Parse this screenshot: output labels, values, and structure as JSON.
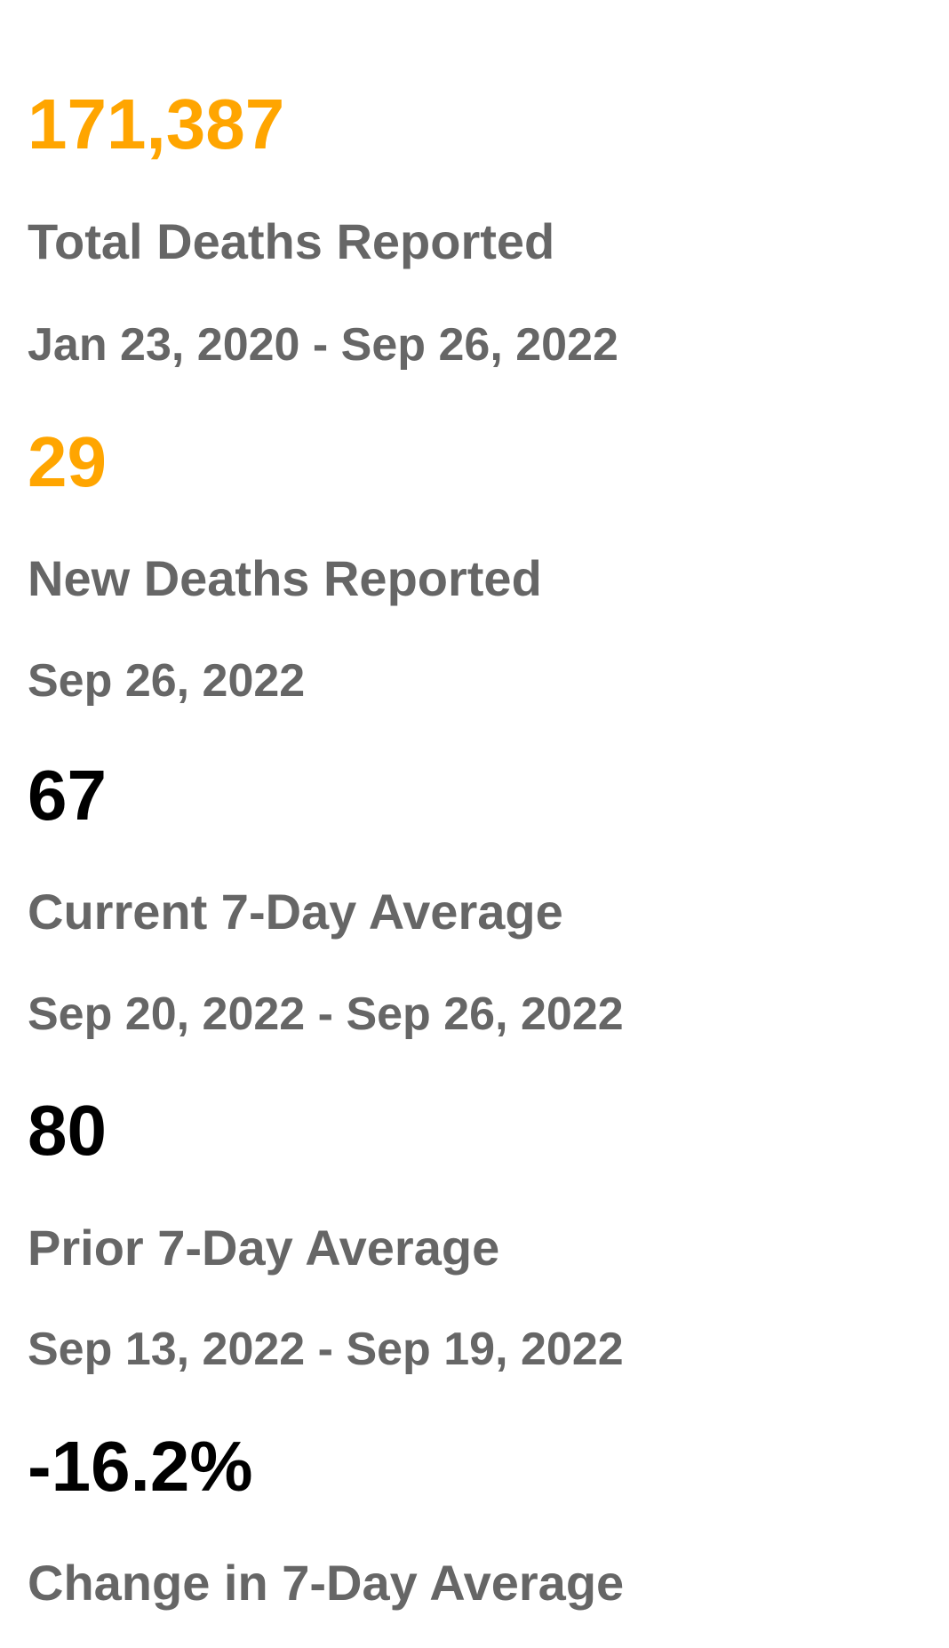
{
  "colors": {
    "highlight_value": "#FFA500",
    "normal_value": "#000000",
    "label": "#666666"
  },
  "stats": [
    {
      "value": "171,387",
      "label": "Total Deaths Reported",
      "period": "Jan 23, 2020 - Sep 26, 2022",
      "highlight": true
    },
    {
      "value": "29",
      "label": "New Deaths Reported",
      "period": "Sep 26, 2022",
      "highlight": true
    },
    {
      "value": "67",
      "label": "Current 7-Day Average",
      "period": "Sep 20, 2022 - Sep 26, 2022",
      "highlight": false
    },
    {
      "value": "80",
      "label": "Prior 7-Day Average",
      "period": "Sep 13, 2022 - Sep 19, 2022",
      "highlight": false
    },
    {
      "value": "-16.2%",
      "label": "Change in 7-Day Average",
      "period": "",
      "highlight": false
    }
  ]
}
